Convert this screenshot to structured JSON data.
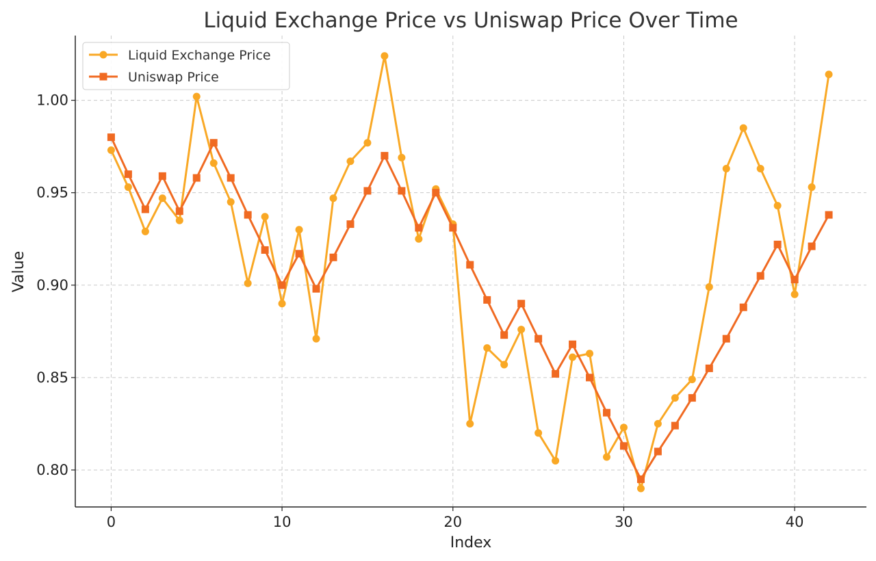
{
  "chart_data": {
    "type": "line",
    "title": "Liquid Exchange Price vs Uniswap Price Over Time",
    "xlabel": "Index",
    "ylabel": "Value",
    "xlim": [
      -2.1,
      44.2
    ],
    "ylim": [
      0.78,
      1.035
    ],
    "xticks": [
      {
        "value": 0,
        "label": "0"
      },
      {
        "value": 10,
        "label": "10"
      },
      {
        "value": 20,
        "label": "20"
      },
      {
        "value": 30,
        "label": "30"
      },
      {
        "value": 40,
        "label": "40"
      }
    ],
    "yticks": [
      {
        "value": 0.8,
        "label": "0.80"
      },
      {
        "value": 0.85,
        "label": "0.85"
      },
      {
        "value": 0.9,
        "label": "0.90"
      },
      {
        "value": 0.95,
        "label": "0.95"
      },
      {
        "value": 1.0,
        "label": "1.00"
      }
    ],
    "grid": true,
    "legend_position": "top-left",
    "x": [
      0,
      1,
      2,
      3,
      4,
      5,
      6,
      7,
      8,
      9,
      10,
      11,
      12,
      13,
      14,
      15,
      16,
      17,
      18,
      19,
      20,
      21,
      22,
      23,
      24,
      25,
      26,
      27,
      28,
      29,
      30,
      31,
      32,
      33,
      34,
      35,
      36,
      37,
      38,
      39,
      40,
      41,
      42
    ],
    "series": [
      {
        "name": "Liquid Exchange Price",
        "color": "#F9A825",
        "marker": "circle",
        "values": [
          0.973,
          0.953,
          0.929,
          0.947,
          0.935,
          1.002,
          0.966,
          0.945,
          0.901,
          0.937,
          0.89,
          0.93,
          0.871,
          0.947,
          0.967,
          0.977,
          1.024,
          0.969,
          0.925,
          0.952,
          0.933,
          0.825,
          0.866,
          0.857,
          0.876,
          0.82,
          0.805,
          0.861,
          0.863,
          0.807,
          0.823,
          0.79,
          0.825,
          0.839,
          0.849,
          0.899,
          0.963,
          0.985,
          0.963,
          0.943,
          0.895,
          0.953,
          1.014
        ]
      },
      {
        "name": "Uniswap Price",
        "color": "#F06A22",
        "marker": "square",
        "values": [
          0.98,
          0.96,
          0.941,
          0.959,
          0.94,
          0.958,
          0.977,
          0.958,
          0.938,
          0.919,
          0.9,
          0.917,
          0.898,
          0.915,
          0.933,
          0.951,
          0.97,
          0.951,
          0.931,
          0.95,
          0.931,
          0.911,
          0.892,
          0.873,
          0.89,
          0.871,
          0.852,
          0.868,
          0.85,
          0.831,
          0.813,
          0.795,
          0.81,
          0.824,
          0.839,
          0.855,
          0.871,
          0.888,
          0.905,
          0.922,
          0.903,
          0.921,
          0.938
        ]
      }
    ]
  }
}
